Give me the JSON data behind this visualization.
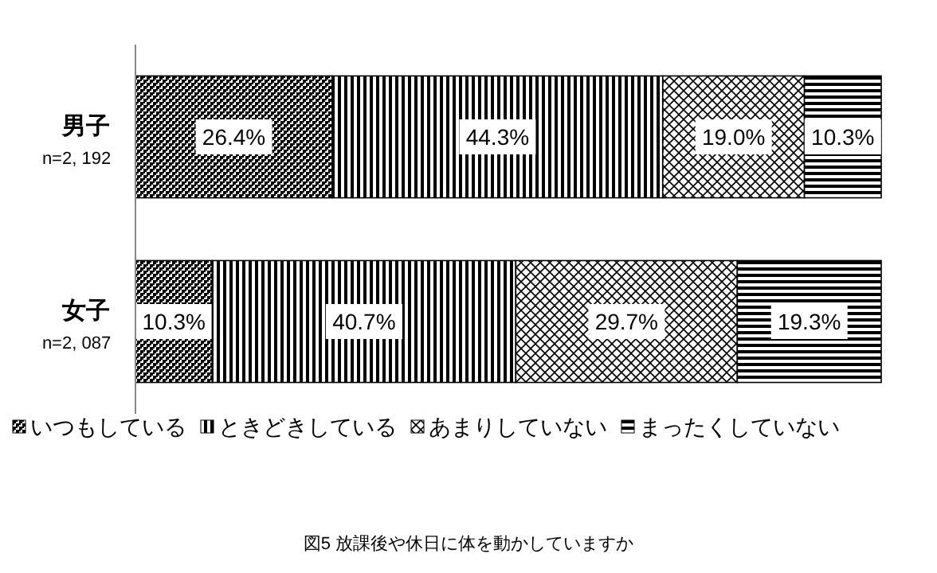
{
  "chart_data": {
    "type": "bar",
    "orientation": "horizontal",
    "stacked": true,
    "title": "図5 放課後や休日に体を動かしていますか",
    "categories": [
      "男子\nn=2, 192",
      "女子\nn=2, 087"
    ],
    "series": [
      {
        "name": "いつもしている",
        "color": "#000000",
        "values": [
          26.4,
          10.3
        ],
        "value_labels": [
          "26.4%",
          "10.3%"
        ]
      },
      {
        "name": "ときどきしている",
        "color": "#000000",
        "values": [
          44.3,
          40.7
        ],
        "value_labels": [
          "44.3%",
          "40.7%"
        ]
      },
      {
        "name": "あまりしていない",
        "color": "#000000",
        "values": [
          19.0,
          29.7
        ],
        "value_labels": [
          "19.0%",
          "29.7%"
        ]
      },
      {
        "name": "まったくしていない",
        "color": "#000000",
        "values": [
          10.3,
          19.3
        ],
        "value_labels": [
          "10.3%",
          "19.3%"
        ]
      }
    ],
    "legend": "bottom"
  }
}
